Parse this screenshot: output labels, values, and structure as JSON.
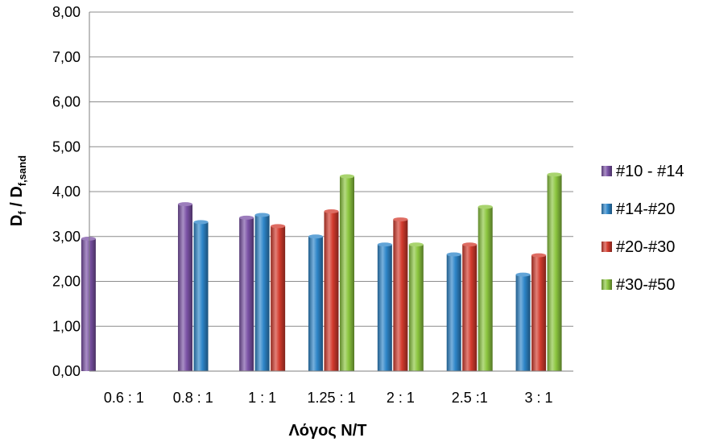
{
  "chart_data": {
    "type": "bar",
    "title": "",
    "xlabel": "Λόγος N/T",
    "ylabel": {
      "main": "D",
      "sub1": "f",
      "sep": " / D",
      "sub2": "f,sand"
    },
    "categories": [
      "0.6 : 1",
      "0.8 : 1",
      "1 : 1",
      "1.25 : 1",
      "2 : 1",
      "2.5 :1",
      "3 : 1"
    ],
    "ylim": [
      0,
      8
    ],
    "yticks": [
      "0,00",
      "1,00",
      "2,00",
      "3,00",
      "4,00",
      "5,00",
      "6,00",
      "7,00",
      "8,00"
    ],
    "grid": true,
    "legend_position": "right",
    "series": [
      {
        "name": "#10 - #14",
        "color": "#7b52a6",
        "values": [
          2.95,
          3.72,
          3.42,
          null,
          null,
          null,
          null
        ]
      },
      {
        "name": "#14-#20",
        "color": "#2e86c9",
        "values": [
          null,
          3.32,
          3.48,
          3.0,
          2.82,
          2.6,
          2.15
        ]
      },
      {
        "name": "#20-#30",
        "color": "#d33b2d",
        "values": [
          null,
          null,
          3.23,
          3.56,
          3.38,
          2.82,
          2.58
        ]
      },
      {
        "name": "#30-#50",
        "color": "#8cc63f",
        "values": [
          null,
          null,
          null,
          4.34,
          2.82,
          3.66,
          4.38
        ]
      }
    ]
  }
}
